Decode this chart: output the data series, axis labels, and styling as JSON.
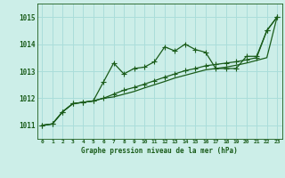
{
  "title": "Graphe pression niveau de la mer (hPa)",
  "bg_color": "#cceee8",
  "grid_color": "#aaddda",
  "line_color": "#1a5c1a",
  "xlim": [
    -0.5,
    23.5
  ],
  "ylim": [
    1010.5,
    1015.5
  ],
  "yticks": [
    1011,
    1012,
    1013,
    1014,
    1015
  ],
  "xticks": [
    0,
    1,
    2,
    3,
    4,
    5,
    6,
    7,
    8,
    9,
    10,
    11,
    12,
    13,
    14,
    15,
    16,
    17,
    18,
    19,
    20,
    21,
    22,
    23
  ],
  "series1": [
    1011.0,
    1011.05,
    1011.5,
    1011.8,
    1011.85,
    1011.9,
    1012.6,
    1013.3,
    1012.9,
    1013.1,
    1013.15,
    1013.35,
    1013.9,
    1013.75,
    1014.0,
    1013.8,
    1013.7,
    1013.1,
    1013.1,
    1013.1,
    1013.55,
    1013.55,
    1014.5,
    1015.0
  ],
  "series2": [
    1011.0,
    1011.05,
    1011.5,
    1011.8,
    1011.85,
    1011.9,
    1012.0,
    1012.15,
    1012.3,
    1012.4,
    1012.52,
    1012.65,
    1012.78,
    1012.9,
    1013.02,
    1013.1,
    1013.2,
    1013.25,
    1013.3,
    1013.35,
    1013.42,
    1013.5,
    1014.5,
    1015.0
  ],
  "series3": [
    1011.0,
    1011.05,
    1011.5,
    1011.8,
    1011.85,
    1011.9,
    1012.0,
    1012.05,
    1012.15,
    1012.25,
    1012.38,
    1012.5,
    1012.62,
    1012.75,
    1012.85,
    1012.95,
    1013.05,
    1013.1,
    1013.15,
    1013.22,
    1013.3,
    1013.4,
    1013.5,
    1015.0
  ]
}
